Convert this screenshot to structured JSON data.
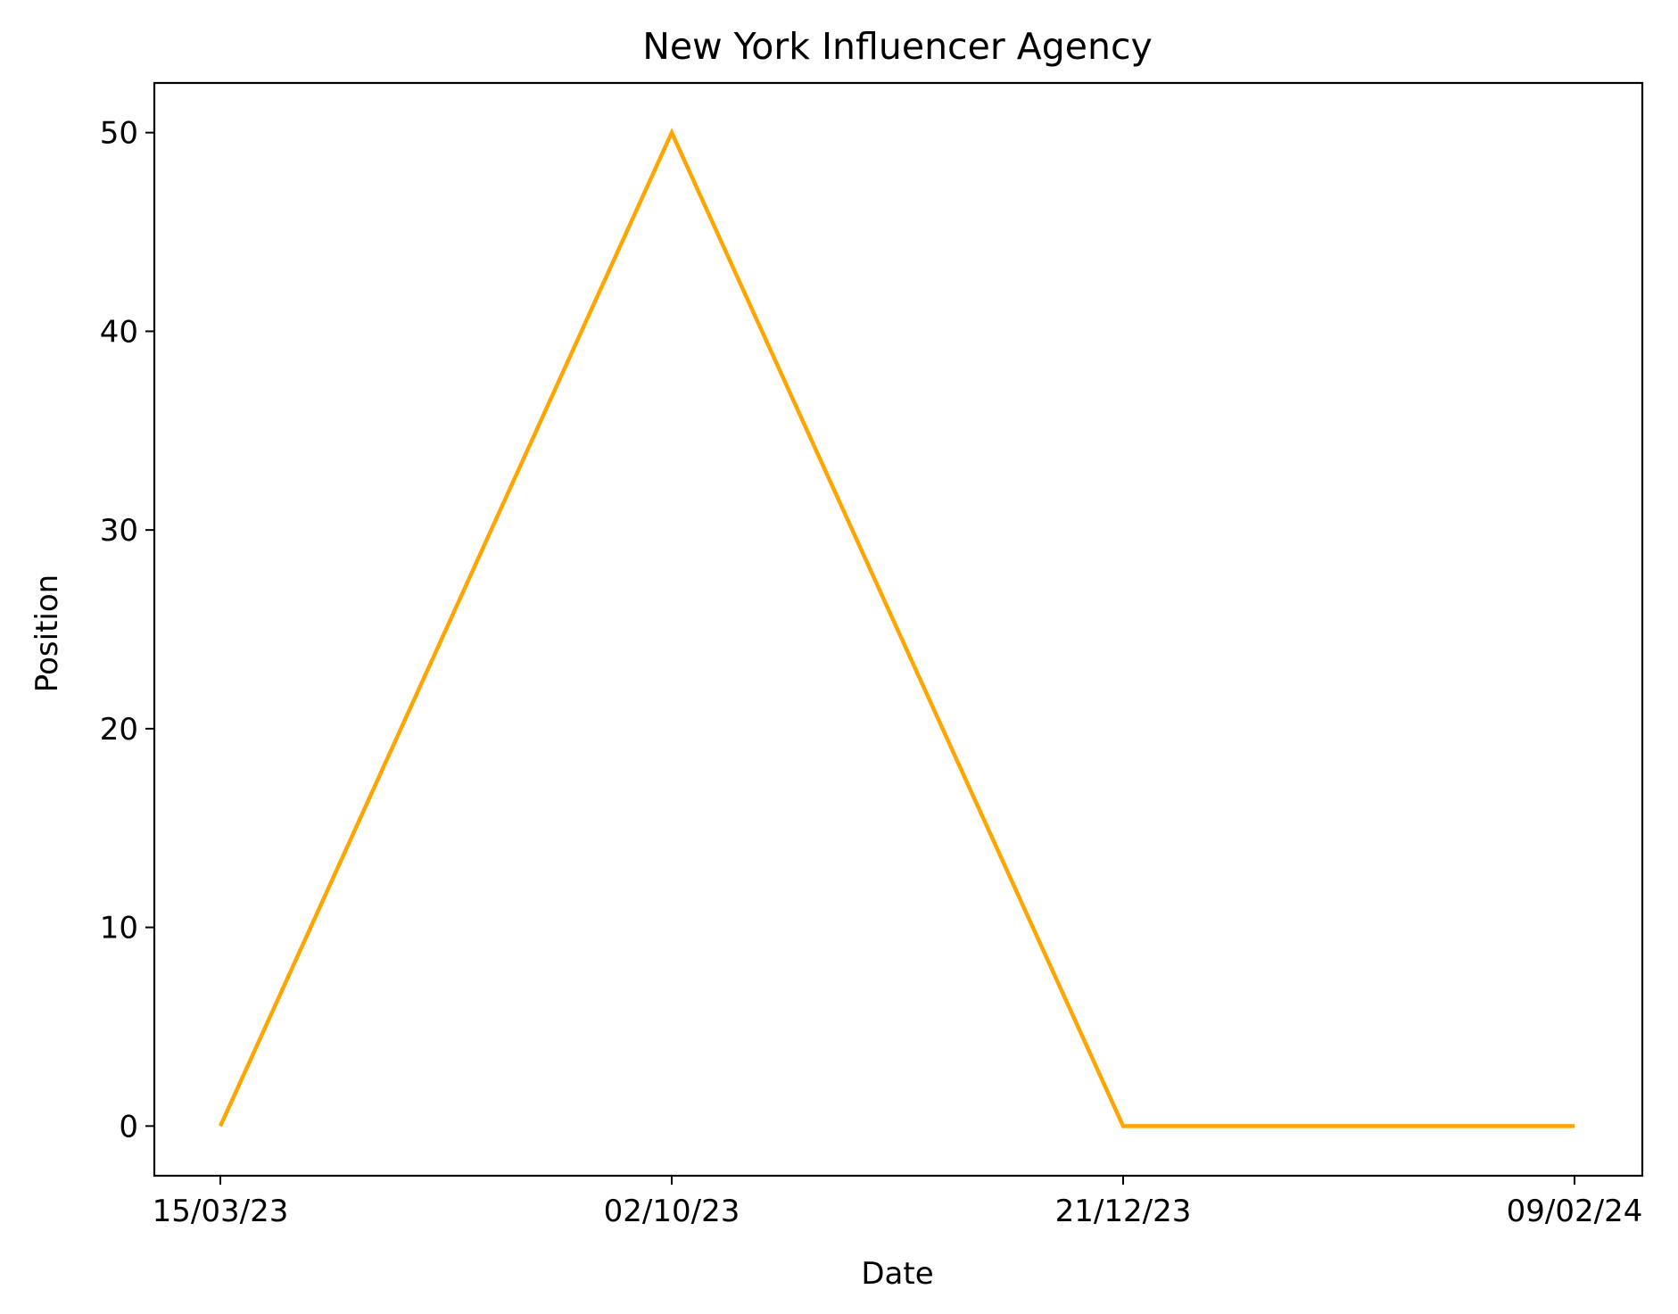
{
  "chart_data": {
    "type": "line",
    "title": "New York Influencer Agency",
    "xlabel": "Date",
    "ylabel": "Position",
    "x_ticks": [
      "15/03/23",
      "02/10/23",
      "21/12/23",
      "09/02/24"
    ],
    "y_ticks": [
      0,
      10,
      20,
      30,
      40,
      50
    ],
    "ylim": [
      -2.5,
      52.5
    ],
    "grid": false,
    "series": [
      {
        "color": "#FFA500",
        "points": [
          {
            "x": "15/03/23",
            "y": 0
          },
          {
            "x": "02/10/23",
            "y": 50
          },
          {
            "x": "21/12/23",
            "y": 0
          },
          {
            "x": "09/02/24",
            "y": 0
          }
        ]
      }
    ]
  }
}
